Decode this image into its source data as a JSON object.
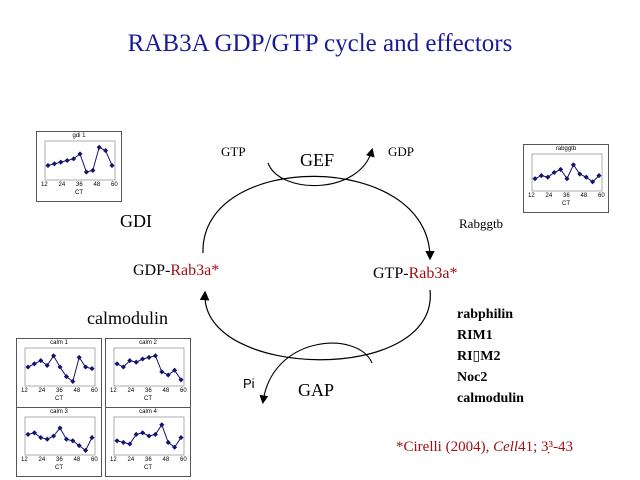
{
  "slide": {
    "title": "RAB3A GDP/GTP cycle and effectors"
  },
  "cycle": {
    "gef_label": "GEF",
    "gtp_in": "GTP",
    "gdp_out": "GDP",
    "gap_label": "GAP",
    "pi_out": "Pi",
    "gdi_label": "GDI",
    "rabggtb_label": "Rabggtb",
    "gdp_state_prefix": "GDP-",
    "gdp_state_protein": "Rab3a*",
    "gtp_state_prefix": "GTP-",
    "gtp_state_protein": "Rab3a*",
    "calmodulin_label": "calmodulin"
  },
  "effectors": [
    "rabphilin",
    "RIM1",
    "RI▯M2",
    "Noc2",
    "calmodulin"
  ],
  "citation": {
    "prefix": "*Cirelli (2004), ",
    "journal": "Cell",
    "rest": "41; 3̣³-43"
  },
  "mini_charts": [
    {
      "id": "gdi1",
      "title": "gdi 1",
      "x_ticks": [
        "12",
        "24",
        "36",
        "48",
        "60"
      ],
      "x_label": "CT",
      "values": [
        0.35,
        0.4,
        0.45,
        0.5,
        0.55,
        0.7,
        0.15,
        0.2,
        0.9,
        0.8,
        0.35
      ]
    },
    {
      "id": "rabggtb",
      "title": "rabggtb",
      "x_ticks": [
        "12",
        "24",
        "36",
        "48",
        "60"
      ],
      "x_label": "CT",
      "values": [
        0.3,
        0.4,
        0.35,
        0.5,
        0.6,
        0.3,
        0.75,
        0.45,
        0.35,
        0.2,
        0.4
      ]
    },
    {
      "id": "calm1",
      "title": "calm 1",
      "x_ticks": [
        "12",
        "24",
        "36",
        "48",
        "60"
      ],
      "x_label": "CT",
      "values": [
        0.5,
        0.6,
        0.7,
        0.55,
        0.85,
        0.5,
        0.2,
        0.05,
        0.8,
        0.5,
        0.45
      ]
    },
    {
      "id": "calm2",
      "title": "calm 2",
      "x_ticks": [
        "12",
        "24",
        "36",
        "48",
        "60"
      ],
      "x_label": "CT",
      "values": [
        0.6,
        0.5,
        0.7,
        0.65,
        0.75,
        0.8,
        0.85,
        0.35,
        0.25,
        0.4,
        0.1
      ]
    },
    {
      "id": "calm3",
      "title": "calm 3",
      "x_ticks": [
        "12",
        "24",
        "36",
        "48",
        "60"
      ],
      "x_label": "CT",
      "values": [
        0.55,
        0.6,
        0.45,
        0.4,
        0.5,
        0.75,
        0.4,
        0.35,
        0.2,
        0.05,
        0.45
      ]
    },
    {
      "id": "calm4",
      "title": "calm 4",
      "x_ticks": [
        "12",
        "24",
        "36",
        "48",
        "60"
      ],
      "x_label": "CT",
      "values": [
        0.35,
        0.3,
        0.25,
        0.55,
        0.6,
        0.5,
        0.55,
        0.85,
        0.3,
        0.15,
        0.45
      ]
    }
  ],
  "colors": {
    "title": "#1a1a99",
    "protein": "#a01010",
    "marker": "#14146e"
  }
}
